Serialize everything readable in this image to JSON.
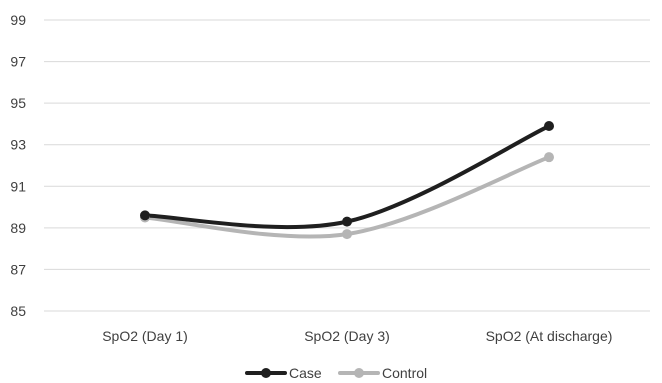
{
  "chart_data": {
    "type": "line",
    "categories": [
      "SpO2 (Day 1)",
      "SpO2 (Day 3)",
      "SpO2 (At discharge)"
    ],
    "series": [
      {
        "name": "Case",
        "values": [
          89.6,
          89.3,
          93.9
        ],
        "color": "#1f1f1f"
      },
      {
        "name": "Control",
        "values": [
          89.5,
          88.7,
          92.4
        ],
        "color": "#b5b5b5"
      }
    ],
    "yticks": [
      "85",
      "87",
      "89",
      "91",
      "93",
      "95",
      "97",
      "99"
    ],
    "ylim": [
      85,
      99
    ],
    "grid": true,
    "smooth": true,
    "legend_position": "bottom",
    "title": "",
    "xlabel": "",
    "ylabel": ""
  }
}
